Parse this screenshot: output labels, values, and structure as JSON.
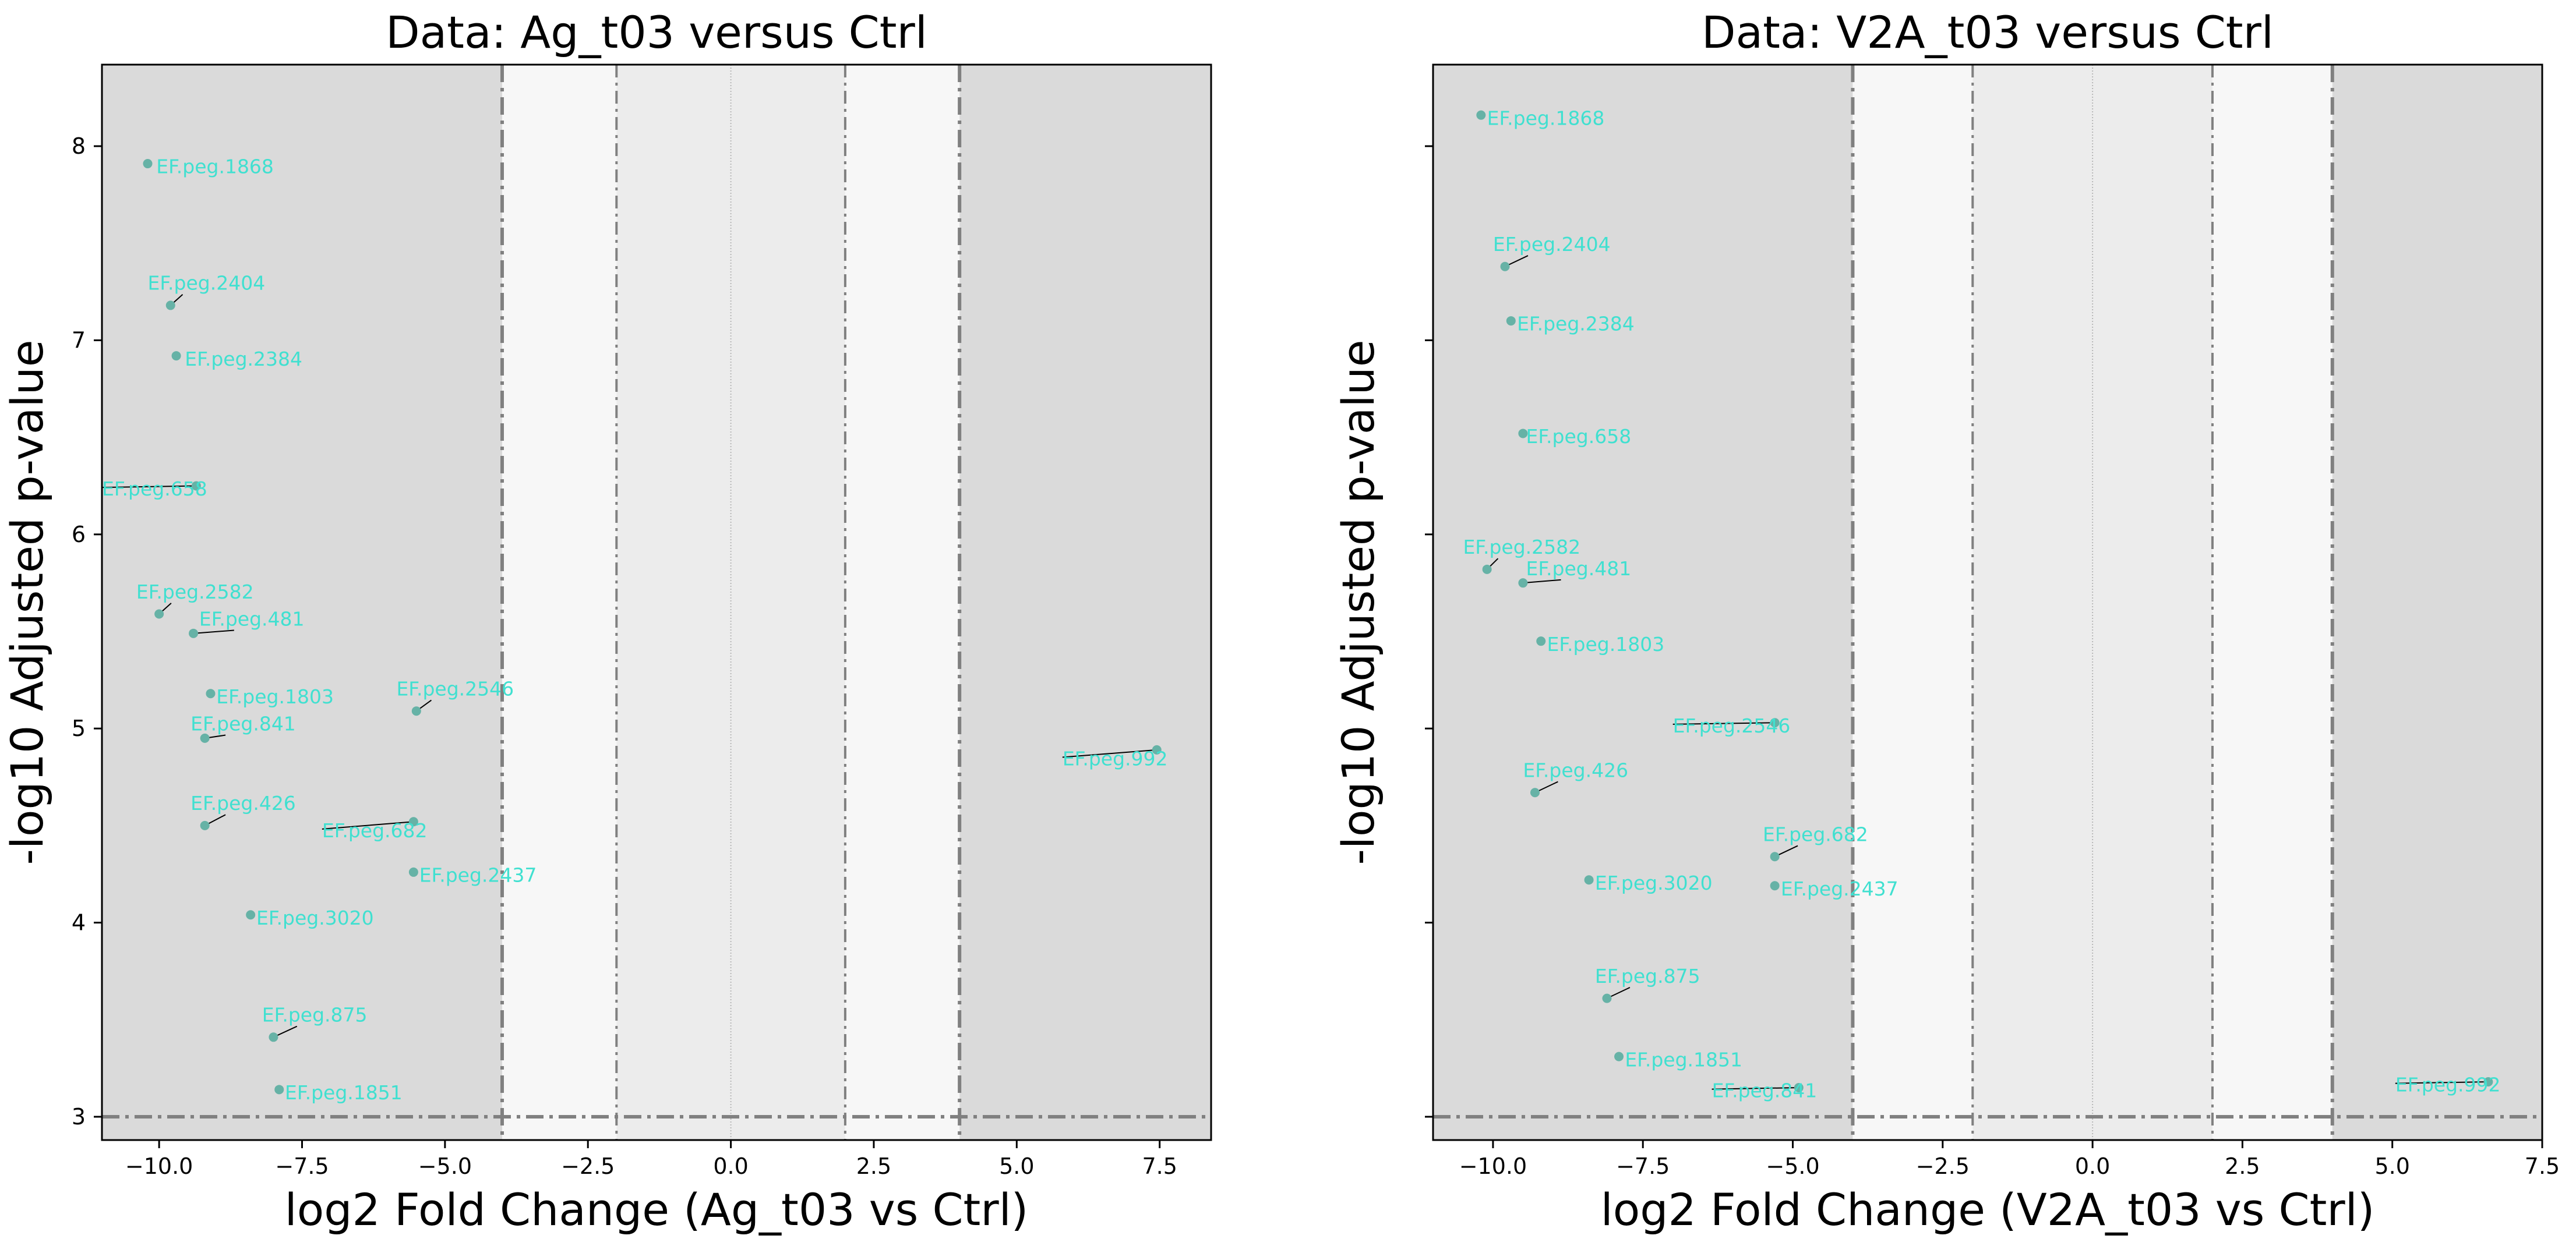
{
  "chart_data": [
    {
      "type": "scatter",
      "title": "Data: Ag_t03 versus Ctrl",
      "xlabel": "log2 Fold Change (Ag_t03 vs Ctrl)",
      "ylabel": "-log10 Adjusted p-value",
      "xlim": [
        -11.0,
        8.4
      ],
      "ylim": [
        2.88,
        8.42
      ],
      "xticks": [
        -10.0,
        -7.5,
        -5.0,
        -2.5,
        0.0,
        2.5,
        5.0,
        7.5
      ],
      "yticks": [
        3,
        4,
        5,
        6,
        7,
        8
      ],
      "fold_thresholds": [
        -4,
        -2,
        2,
        4
      ],
      "pvalue_threshold": 3,
      "show_ytick_labels": true,
      "points": [
        {
          "label": "EF.peg.1868",
          "x": -10.2,
          "y": 7.91,
          "lx": -10.05,
          "ly": 7.86
        },
        {
          "label": "EF.peg.2404",
          "x": -9.8,
          "y": 7.18,
          "lx": -10.2,
          "ly": 7.26
        },
        {
          "label": "EF.peg.2384",
          "x": -9.7,
          "y": 6.92,
          "lx": -9.55,
          "ly": 6.87
        },
        {
          "label": "EF.peg.658",
          "x": -9.35,
          "y": 6.25,
          "lx": -11.0,
          "ly": 6.2
        },
        {
          "label": "EF.peg.2582",
          "x": -10.0,
          "y": 5.59,
          "lx": -10.4,
          "ly": 5.67
        },
        {
          "label": "EF.peg.481",
          "x": -9.4,
          "y": 5.49,
          "lx": -9.3,
          "ly": 5.53
        },
        {
          "label": "EF.peg.1803",
          "x": -9.1,
          "y": 5.18,
          "lx": -9.0,
          "ly": 5.13
        },
        {
          "label": "EF.peg.841",
          "x": -9.2,
          "y": 4.95,
          "lx": -9.45,
          "ly": 4.99
        },
        {
          "label": "EF.peg.2546",
          "x": -5.5,
          "y": 5.09,
          "lx": -5.85,
          "ly": 5.17
        },
        {
          "label": "EF.peg.426",
          "x": -9.2,
          "y": 4.5,
          "lx": -9.45,
          "ly": 4.58
        },
        {
          "label": "EF.peg.682",
          "x": -5.55,
          "y": 4.52,
          "lx": -7.15,
          "ly": 4.44
        },
        {
          "label": "EF.peg.2437",
          "x": -5.55,
          "y": 4.26,
          "lx": -5.45,
          "ly": 4.21
        },
        {
          "label": "EF.peg.3020",
          "x": -8.4,
          "y": 4.04,
          "lx": -8.3,
          "ly": 3.99
        },
        {
          "label": "EF.peg.875",
          "x": -8.0,
          "y": 3.41,
          "lx": -8.2,
          "ly": 3.49
        },
        {
          "label": "EF.peg.1851",
          "x": -7.9,
          "y": 3.14,
          "lx": -7.8,
          "ly": 3.09
        },
        {
          "label": "EF.peg.992",
          "x": 7.45,
          "y": 4.89,
          "lx": 5.8,
          "ly": 4.81
        }
      ]
    },
    {
      "type": "scatter",
      "title": "Data: V2A_t03 versus Ctrl",
      "xlabel": "log2 Fold Change (V2A_t03 vs Ctrl)",
      "ylabel": "-log10 Adjusted p-value",
      "xlim": [
        -11.0,
        7.5
      ],
      "ylim": [
        2.88,
        8.42
      ],
      "xticks": [
        -10.0,
        -7.5,
        -5.0,
        -2.5,
        0.0,
        2.5,
        5.0,
        7.5
      ],
      "yticks": [
        3,
        4,
        5,
        6,
        7,
        8
      ],
      "fold_thresholds": [
        -4,
        -2,
        2,
        4
      ],
      "pvalue_threshold": 3,
      "show_ytick_labels": false,
      "points": [
        {
          "label": "EF.peg.1868",
          "x": -10.2,
          "y": 8.16,
          "lx": -10.1,
          "ly": 8.11
        },
        {
          "label": "EF.peg.2404",
          "x": -9.8,
          "y": 7.38,
          "lx": -10.0,
          "ly": 7.46
        },
        {
          "label": "EF.peg.2384",
          "x": -9.7,
          "y": 7.1,
          "lx": -9.6,
          "ly": 7.05
        },
        {
          "label": "EF.peg.658",
          "x": -9.5,
          "y": 6.52,
          "lx": -9.45,
          "ly": 6.47
        },
        {
          "label": "EF.peg.2582",
          "x": -10.1,
          "y": 5.82,
          "lx": -10.5,
          "ly": 5.9
        },
        {
          "label": "EF.peg.481",
          "x": -9.5,
          "y": 5.75,
          "lx": -9.45,
          "ly": 5.79
        },
        {
          "label": "EF.peg.1803",
          "x": -9.2,
          "y": 5.45,
          "lx": -9.1,
          "ly": 5.4
        },
        {
          "label": "EF.peg.2546",
          "x": -5.3,
          "y": 5.03,
          "lx": -7.0,
          "ly": 4.98
        },
        {
          "label": "EF.peg.426",
          "x": -9.3,
          "y": 4.67,
          "lx": -9.5,
          "ly": 4.75
        },
        {
          "label": "EF.peg.682",
          "x": -5.3,
          "y": 4.34,
          "lx": -5.5,
          "ly": 4.42
        },
        {
          "label": "EF.peg.3020",
          "x": -8.4,
          "y": 4.22,
          "lx": -8.3,
          "ly": 4.17
        },
        {
          "label": "EF.peg.2437",
          "x": -5.3,
          "y": 4.19,
          "lx": -5.2,
          "ly": 4.14
        },
        {
          "label": "EF.peg.875",
          "x": -8.1,
          "y": 3.61,
          "lx": -8.3,
          "ly": 3.69
        },
        {
          "label": "EF.peg.1851",
          "x": -7.9,
          "y": 3.31,
          "lx": -7.8,
          "ly": 3.26
        },
        {
          "label": "EF.peg.841",
          "x": -4.9,
          "y": 3.15,
          "lx": -6.35,
          "ly": 3.1
        },
        {
          "label": "EF.peg.992",
          "x": 6.6,
          "y": 3.18,
          "lx": 5.05,
          "ly": 3.13
        }
      ]
    }
  ],
  "colors": {
    "outer_zone": "#dadada",
    "mid_zone": "#f7f7f7",
    "inner_zone": "#ececec",
    "threshold_line": "#808080",
    "point": "#66b2a6",
    "point_label": "#40e0d0",
    "connector": "#000000"
  }
}
